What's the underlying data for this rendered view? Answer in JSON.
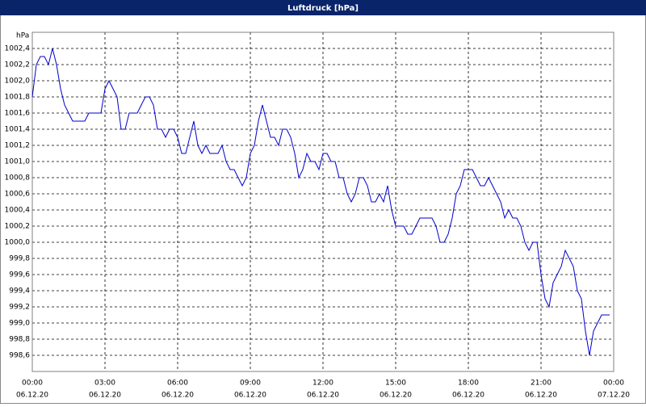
{
  "chart_data": {
    "type": "line",
    "title": "Luftdruck [hPa]",
    "y_unit_label": "hPa",
    "x": [
      0,
      10,
      20,
      30,
      40,
      50,
      60,
      70,
      80,
      90,
      100,
      110,
      120,
      130,
      140,
      150,
      160,
      170,
      180,
      190,
      200,
      210,
      220,
      230,
      240,
      250,
      260,
      270,
      280,
      290,
      300,
      310,
      320,
      330,
      340,
      350,
      360,
      370,
      380,
      390,
      400,
      410,
      420,
      430,
      440,
      450,
      460,
      470,
      480,
      490,
      500,
      510,
      520,
      530,
      540,
      550,
      560,
      570,
      580,
      590,
      600,
      610,
      620,
      630,
      640,
      650,
      660,
      670,
      680,
      690,
      700,
      710,
      720,
      730,
      740,
      750,
      760,
      770,
      780,
      790,
      800,
      810,
      820,
      830,
      840,
      850,
      860,
      870,
      880,
      890,
      900,
      910,
      920,
      930,
      940,
      950,
      960,
      970,
      980,
      990,
      1000,
      1010,
      1020,
      1030,
      1040,
      1050,
      1060,
      1070,
      1080,
      1090,
      1100,
      1110,
      1120,
      1130,
      1140,
      1150,
      1160,
      1170,
      1180,
      1190,
      1200,
      1210,
      1220,
      1230,
      1240,
      1250,
      1260,
      1270,
      1280,
      1290,
      1300,
      1310,
      1320,
      1330,
      1340,
      1350,
      1360,
      1370,
      1380,
      1390,
      1400,
      1410,
      1420,
      1430
    ],
    "series": [
      {
        "color": "#0000cc",
        "values": [
          1001.8,
          1002.2,
          1002.3,
          1002.3,
          1002.2,
          1002.4,
          1002.2,
          1001.9,
          1001.7,
          1001.6,
          1001.5,
          1001.5,
          1001.5,
          1001.5,
          1001.6,
          1001.6,
          1001.6,
          1001.6,
          1001.9,
          1002.0,
          1001.9,
          1001.8,
          1001.4,
          1001.4,
          1001.6,
          1001.6,
          1001.6,
          1001.7,
          1001.8,
          1001.8,
          1001.7,
          1001.4,
          1001.4,
          1001.3,
          1001.4,
          1001.4,
          1001.3,
          1001.1,
          1001.1,
          1001.3,
          1001.5,
          1001.2,
          1001.1,
          1001.2,
          1001.1,
          1001.1,
          1001.1,
          1001.2,
          1001.0,
          1000.9,
          1000.9,
          1000.8,
          1000.7,
          1000.8,
          1001.1,
          1001.2,
          1001.5,
          1001.7,
          1001.5,
          1001.3,
          1001.3,
          1001.2,
          1001.4,
          1001.4,
          1001.3,
          1001.1,
          1000.8,
          1000.9,
          1001.1,
          1001.0,
          1001.0,
          1000.9,
          1001.1,
          1001.1,
          1001.0,
          1001.0,
          1000.8,
          1000.8,
          1000.6,
          1000.5,
          1000.6,
          1000.8,
          1000.8,
          1000.7,
          1000.5,
          1000.5,
          1000.6,
          1000.5,
          1000.7,
          1000.4,
          1000.2,
          1000.2,
          1000.2,
          1000.1,
          1000.1,
          1000.2,
          1000.3,
          1000.3,
          1000.3,
          1000.3,
          1000.2,
          1000.0,
          1000.0,
          1000.1,
          1000.3,
          1000.6,
          1000.7,
          1000.9,
          1000.9,
          1000.9,
          1000.8,
          1000.7,
          1000.7,
          1000.8,
          1000.7,
          1000.6,
          1000.5,
          1000.3,
          1000.4,
          1000.3,
          1000.3,
          1000.2,
          1000.0,
          999.9,
          1000.0,
          1000.0,
          999.6,
          999.3,
          999.2,
          999.5,
          999.6,
          999.7,
          999.9,
          999.8,
          999.7,
          999.4,
          999.3,
          998.9,
          998.6,
          998.9,
          999.0,
          999.1,
          999.1,
          999.1
        ]
      }
    ],
    "xlim": [
      0,
      1440
    ],
    "xticks": [
      {
        "value": 0,
        "label": "00:00"
      },
      {
        "value": 180,
        "label": "03:00"
      },
      {
        "value": 360,
        "label": "06:00"
      },
      {
        "value": 540,
        "label": "09:00"
      },
      {
        "value": 720,
        "label": "12:00"
      },
      {
        "value": 900,
        "label": "15:00"
      },
      {
        "value": 1080,
        "label": "18:00"
      },
      {
        "value": 1260,
        "label": "21:00"
      },
      {
        "value": 1440,
        "label": "00:00"
      }
    ],
    "xtick_dates": [
      "06.12.20",
      "06.12.20",
      "06.12.20",
      "06.12.20",
      "06.12.20",
      "06.12.20",
      "06.12.20",
      "06.12.20",
      "07.12.20"
    ],
    "ylim": [
      998.4,
      1002.6
    ],
    "yticks": [
      {
        "value": 998.6,
        "label": "998,6"
      },
      {
        "value": 998.8,
        "label": "998,8"
      },
      {
        "value": 999.0,
        "label": "999,0"
      },
      {
        "value": 999.2,
        "label": "999,2"
      },
      {
        "value": 999.4,
        "label": "999,4"
      },
      {
        "value": 999.6,
        "label": "999,6"
      },
      {
        "value": 999.8,
        "label": "999,8"
      },
      {
        "value": 1000.0,
        "label": "1000,0"
      },
      {
        "value": 1000.2,
        "label": "1000,2"
      },
      {
        "value": 1000.4,
        "label": "1000,4"
      },
      {
        "value": 1000.6,
        "label": "1000,6"
      },
      {
        "value": 1000.8,
        "label": "1000,8"
      },
      {
        "value": 1001.0,
        "label": "1001,0"
      },
      {
        "value": 1001.2,
        "label": "1001,2"
      },
      {
        "value": 1001.4,
        "label": "1001,4"
      },
      {
        "value": 1001.6,
        "label": "1001,6"
      },
      {
        "value": 1001.8,
        "label": "1001,8"
      },
      {
        "value": 1002.0,
        "label": "1002,0"
      },
      {
        "value": 1002.2,
        "label": "1002,2"
      },
      {
        "value": 1002.4,
        "label": "1002,4"
      }
    ],
    "grid": true
  }
}
